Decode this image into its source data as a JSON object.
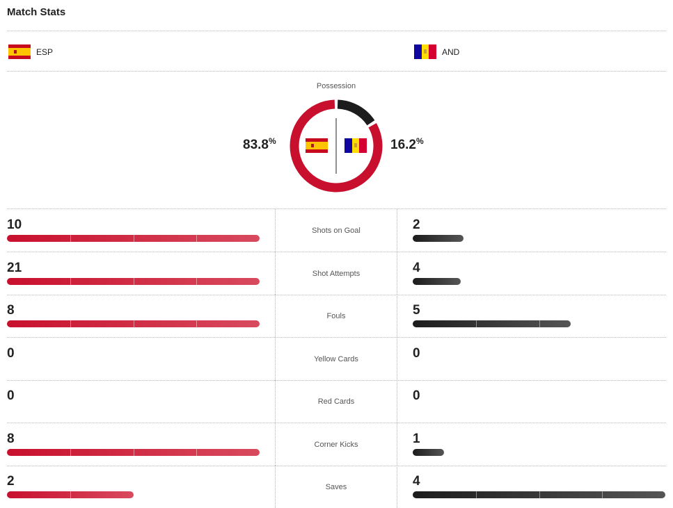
{
  "header": {
    "title": "Match Stats"
  },
  "teams": {
    "home": {
      "abbr": "ESP",
      "flag_icon": "spain-flag",
      "color": "#c8102e",
      "possession": 83.8,
      "possession_text": "83.8"
    },
    "away": {
      "abbr": "AND",
      "flag_icon": "andorra-flag",
      "color": "#1c1c1c",
      "possession": 16.2,
      "possession_text": "16.2"
    }
  },
  "possession": {
    "label": "Possession",
    "unit": "%"
  },
  "stats": [
    {
      "label": "Shots on Goal",
      "home": "10",
      "away": "2",
      "home_fill": 1.0,
      "away_fill": 0.2
    },
    {
      "label": "Shot Attempts",
      "home": "21",
      "away": "4",
      "home_fill": 1.0,
      "away_fill": 0.19
    },
    {
      "label": "Fouls",
      "home": "8",
      "away": "5",
      "home_fill": 1.0,
      "away_fill": 0.625
    },
    {
      "label": "Yellow Cards",
      "home": "0",
      "away": "0",
      "home_fill": 0,
      "away_fill": 0
    },
    {
      "label": "Red Cards",
      "home": "0",
      "away": "0",
      "home_fill": 0,
      "away_fill": 0
    },
    {
      "label": "Corner Kicks",
      "home": "8",
      "away": "1",
      "home_fill": 1.0,
      "away_fill": 0.125
    },
    {
      "label": "Saves",
      "home": "2",
      "away": "4",
      "home_fill": 0.5,
      "away_fill": 1.0
    }
  ]
}
